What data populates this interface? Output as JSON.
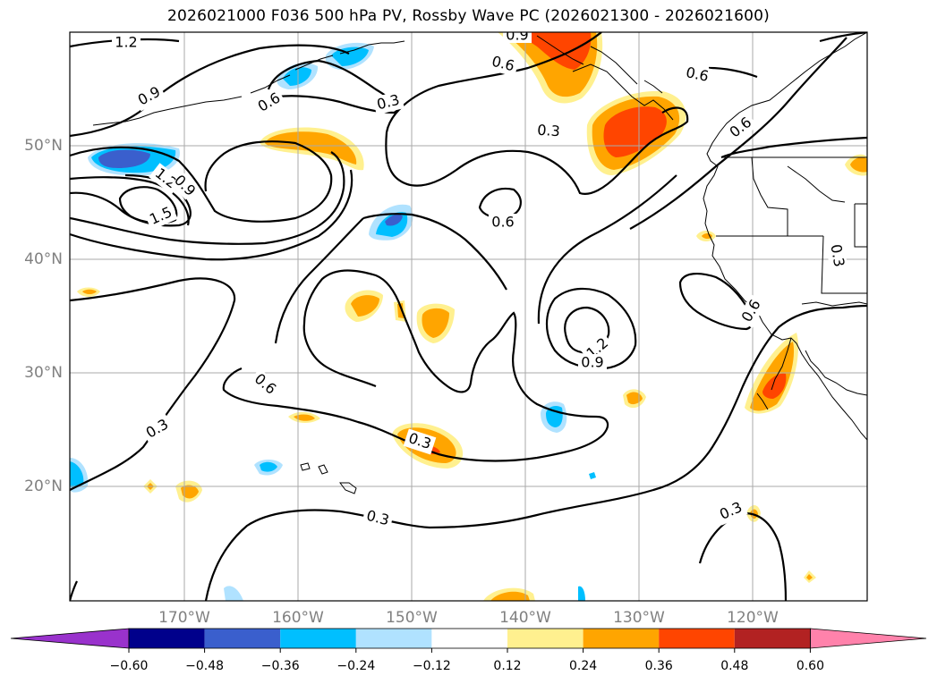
{
  "title": "2026021000 F036 500 hPa PV, Rossby Wave PC (2026021300 - 2026021600)",
  "lat_labels": [
    "50°N",
    "40°N",
    "30°N",
    "20°N"
  ],
  "lon_labels": [
    "170°W",
    "160°W",
    "150°W",
    "140°W",
    "130°W",
    "120°W"
  ],
  "contour_labels": {
    "c1": "1.2",
    "c2": "0.9",
    "c3": "0.6",
    "c4": "0.3",
    "c5": "0.6",
    "c6": "0.6",
    "c7": "0.3",
    "c8": "0.6",
    "c9": "1.2",
    "c10": "0.9",
    "c11": "1.5",
    "c12": "0.6",
    "c13": "0.3",
    "c14": "0.6",
    "c15": "0.3",
    "c16": "1.2",
    "c17": "0.9",
    "c18": "0.3",
    "c19": "0.3",
    "c20": "0.6",
    "c21": "0.3",
    "c22": "0.9"
  },
  "colorbar": {
    "ticks": [
      "−0.60",
      "−0.48",
      "−0.36",
      "−0.24",
      "−0.12",
      "0.12",
      "0.24",
      "0.36",
      "0.48",
      "0.60"
    ],
    "colors": [
      "#9932cc",
      "#00008b",
      "#3a5fcd",
      "#00bfff",
      "#b0e2ff",
      "#ffffff",
      "#fff08f",
      "#ffa500",
      "#ff4500",
      "#b22222",
      "#ff82ab"
    ]
  },
  "colors": {
    "neg_strong": "#3a5fcd",
    "neg_mid": "#00bfff",
    "neg_weak": "#b0e2ff",
    "pos_weak": "#fff08f",
    "pos_mid": "#ffa500",
    "pos_strong": "#ff4500"
  }
}
